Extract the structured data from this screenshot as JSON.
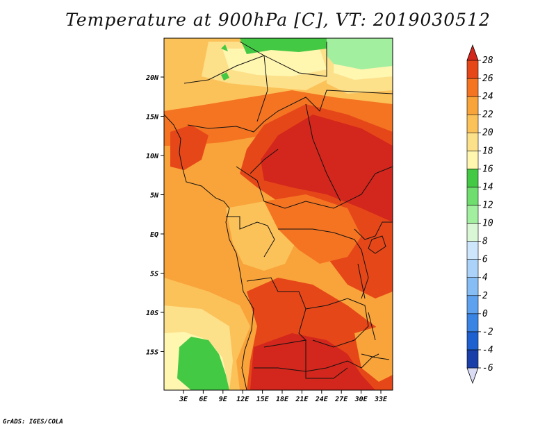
{
  "title": "Temperature at 900hPa [C], VT: 2019030512",
  "credit": "GrADS: IGES/COLA",
  "map": {
    "lon_labels": [
      "3E",
      "6E",
      "9E",
      "12E",
      "15E",
      "18E",
      "21E",
      "24E",
      "27E",
      "30E",
      "33E"
    ],
    "lat_labels": [
      "20N",
      "15N",
      "10N",
      "5N",
      "EQ",
      "5S",
      "10S",
      "15S"
    ]
  },
  "colorbar": {
    "levels": [
      "-6",
      "-4",
      "-2",
      "0",
      "2",
      "4",
      "6",
      "8",
      "10",
      "12",
      "14",
      "16",
      "18",
      "20",
      "22",
      "24",
      "26",
      "28"
    ],
    "colors": [
      "#0a0f6e",
      "#1a3fa8",
      "#1f60d0",
      "#3a84e4",
      "#5ea2ef",
      "#86bdf5",
      "#abd2f8",
      "#cde6fb",
      "#d9f7d4",
      "#a3efa0",
      "#6fde6f",
      "#44c944",
      "#fff6b0",
      "#fde08a",
      "#fcc25a",
      "#f9a43a",
      "#f47422",
      "#e64719",
      "#d3261c"
    ],
    "under_color": "#dadcf5"
  },
  "legend_colors": {
    "green_zone": "#44c944",
    "land_mid": "#f9a43a",
    "land_hot": "#d3261c"
  }
}
